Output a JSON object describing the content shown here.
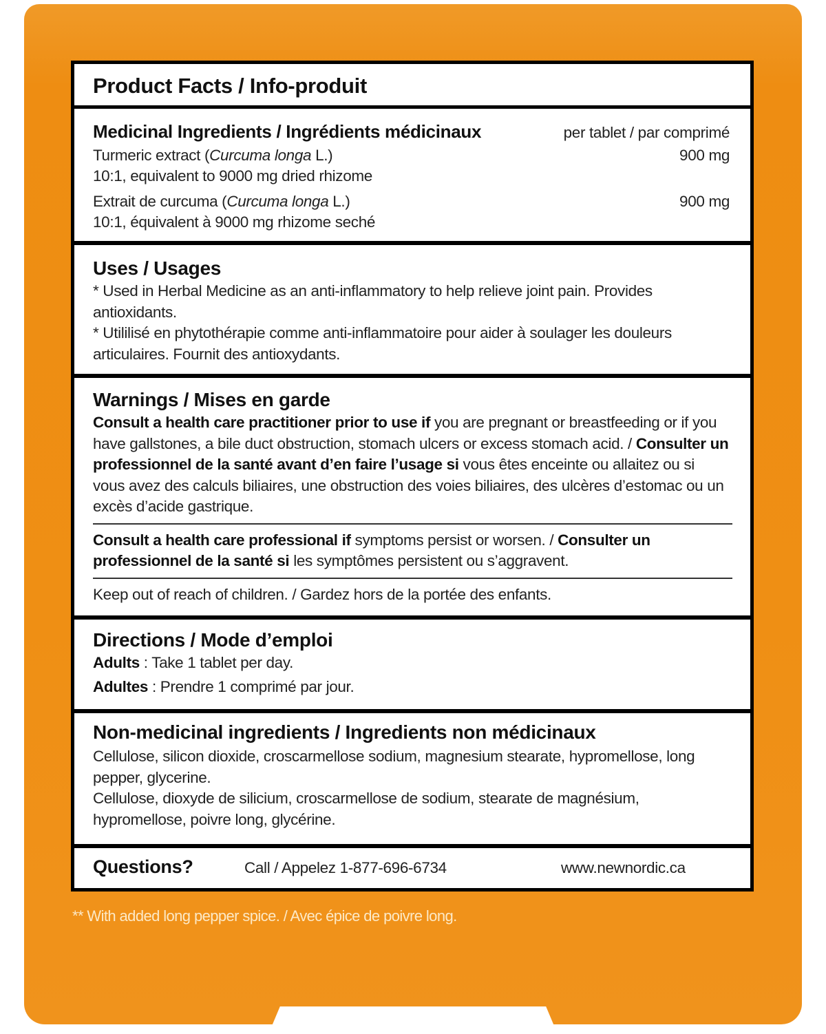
{
  "title": "Product Facts / Info-produit",
  "medicinal": {
    "heading": "Medicinal Ingredients / Ingrédients médicinaux",
    "per": "per tablet / par comprimé",
    "items": [
      {
        "name_pre": "Turmeric extract (",
        "latin": "Curcuma longa",
        "name_post": " L.)",
        "amount": "900 mg",
        "detail": "10:1, equivalent to 9000 mg dried rhizome"
      },
      {
        "name_pre": "Extrait de curcuma (",
        "latin": "Curcuma longa",
        "name_post": " L.)",
        "amount": "900 mg",
        "detail": "10:1, équivalent à 9000 mg rhizome seché"
      }
    ]
  },
  "uses": {
    "heading": "Uses / Usages",
    "en": "* Used in Herbal Medicine as an anti-inflammatory to help relieve joint pain. Provides antioxidants.",
    "fr": "* Utililisé en phytothérapie comme anti-inflammatoire pour aider à soulager les douleurs articulaires. Fournit des antioxydants."
  },
  "warnings": {
    "heading": "Warnings / Mises en garde",
    "p1_en_bold": "Consult a health care practitioner prior to use if",
    "p1_en": " you are pregnant or breastfeeding or if you have gallstones, a bile duct obstruction, stomach ulcers or excess stomach acid. /",
    "p1_fr_bold": "Consulter un professionnel de la santé avant d’en faire l’usage si",
    "p1_fr": " vous êtes enceinte ou allaitez ou si vous avez des calculs biliaires, une obstruction des voies biliaires, des ulcères d’estomac ou un excès d’acide gastrique.",
    "p2_en_bold": "Consult a health care professional if",
    "p2_en": " symptoms persist or worsen. / ",
    "p2_fr_bold": "Consulter un professionnel de la santé si",
    "p2_fr": " les symptômes persistent ou s’aggravent.",
    "p3": "Keep out of reach of children. / Gardez hors de la portée des enfants."
  },
  "directions": {
    "heading": "Directions / Mode d’emploi",
    "en_label": "Adults",
    "en": " : Take 1 tablet per day.",
    "fr_label": "Adultes",
    "fr": " : Prendre 1 comprimé par jour."
  },
  "non_medicinal": {
    "heading": "Non-medicinal ingredients / Ingredients non médicinaux",
    "en": "Cellulose, silicon dioxide, croscarmellose sodium, magnesium stearate, hypromellose, long pepper, glycerine.",
    "fr": "Cellulose, dioxyde de silicium, croscarmellose de sodium, stearate de magnésium, hypromellose, poivre long, glycérine."
  },
  "questions": {
    "label": "Questions?",
    "call": "Call / Appelez 1-877-696-6734",
    "website": "www.newnordic.ca"
  },
  "footnote": "** With added long pepper spice. / Avec épice de poivre long.",
  "colors": {
    "box": "#ef8f14",
    "panel_border": "#000000",
    "footnote": "#fde9c6"
  }
}
